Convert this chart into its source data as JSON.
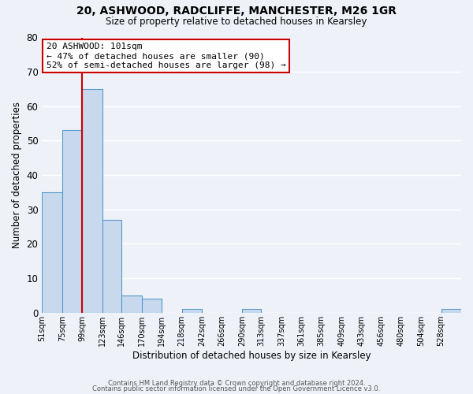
{
  "title": "20, ASHWOOD, RADCLIFFE, MANCHESTER, M26 1GR",
  "subtitle": "Size of property relative to detached houses in Kearsley",
  "xlabel": "Distribution of detached houses by size in Kearsley",
  "ylabel": "Number of detached properties",
  "bin_labels": [
    "51sqm",
    "75sqm",
    "99sqm",
    "123sqm",
    "146sqm",
    "170sqm",
    "194sqm",
    "218sqm",
    "242sqm",
    "266sqm",
    "290sqm",
    "313sqm",
    "337sqm",
    "361sqm",
    "385sqm",
    "409sqm",
    "433sqm",
    "456sqm",
    "480sqm",
    "504sqm",
    "528sqm"
  ],
  "bin_left_edges": [
    51,
    75,
    99,
    123,
    146,
    170,
    194,
    218,
    242,
    266,
    290,
    313,
    337,
    361,
    385,
    409,
    433,
    456,
    480,
    504,
    528
  ],
  "bin_widths": [
    24,
    24,
    24,
    23,
    24,
    24,
    24,
    24,
    24,
    24,
    23,
    24,
    24,
    24,
    24,
    24,
    23,
    24,
    24,
    24,
    24
  ],
  "bar_heights": [
    35,
    53,
    65,
    27,
    5,
    4,
    0,
    1,
    0,
    0,
    1,
    0,
    0,
    0,
    0,
    0,
    0,
    0,
    0,
    0,
    1
  ],
  "bar_color": "#c8d9ed",
  "bar_edge_color": "#5599cc",
  "background_color": "#eef2f8",
  "grid_color": "#ffffff",
  "property_line_x": 99,
  "property_line_color": "#cc0000",
  "annotation_text": "20 ASHWOOD: 101sqm\n← 47% of detached houses are smaller (90)\n52% of semi-detached houses are larger (98) →",
  "annotation_box_facecolor": "#ffffff",
  "annotation_box_edgecolor": "#cc0000",
  "ylim": [
    0,
    80
  ],
  "yticks": [
    0,
    10,
    20,
    30,
    40,
    50,
    60,
    70,
    80
  ],
  "xlim_left": 51,
  "xlim_right": 552,
  "footer_line1": "Contains HM Land Registry data © Crown copyright and database right 2024.",
  "footer_line2": "Contains public sector information licensed under the Open Government Licence v3.0."
}
